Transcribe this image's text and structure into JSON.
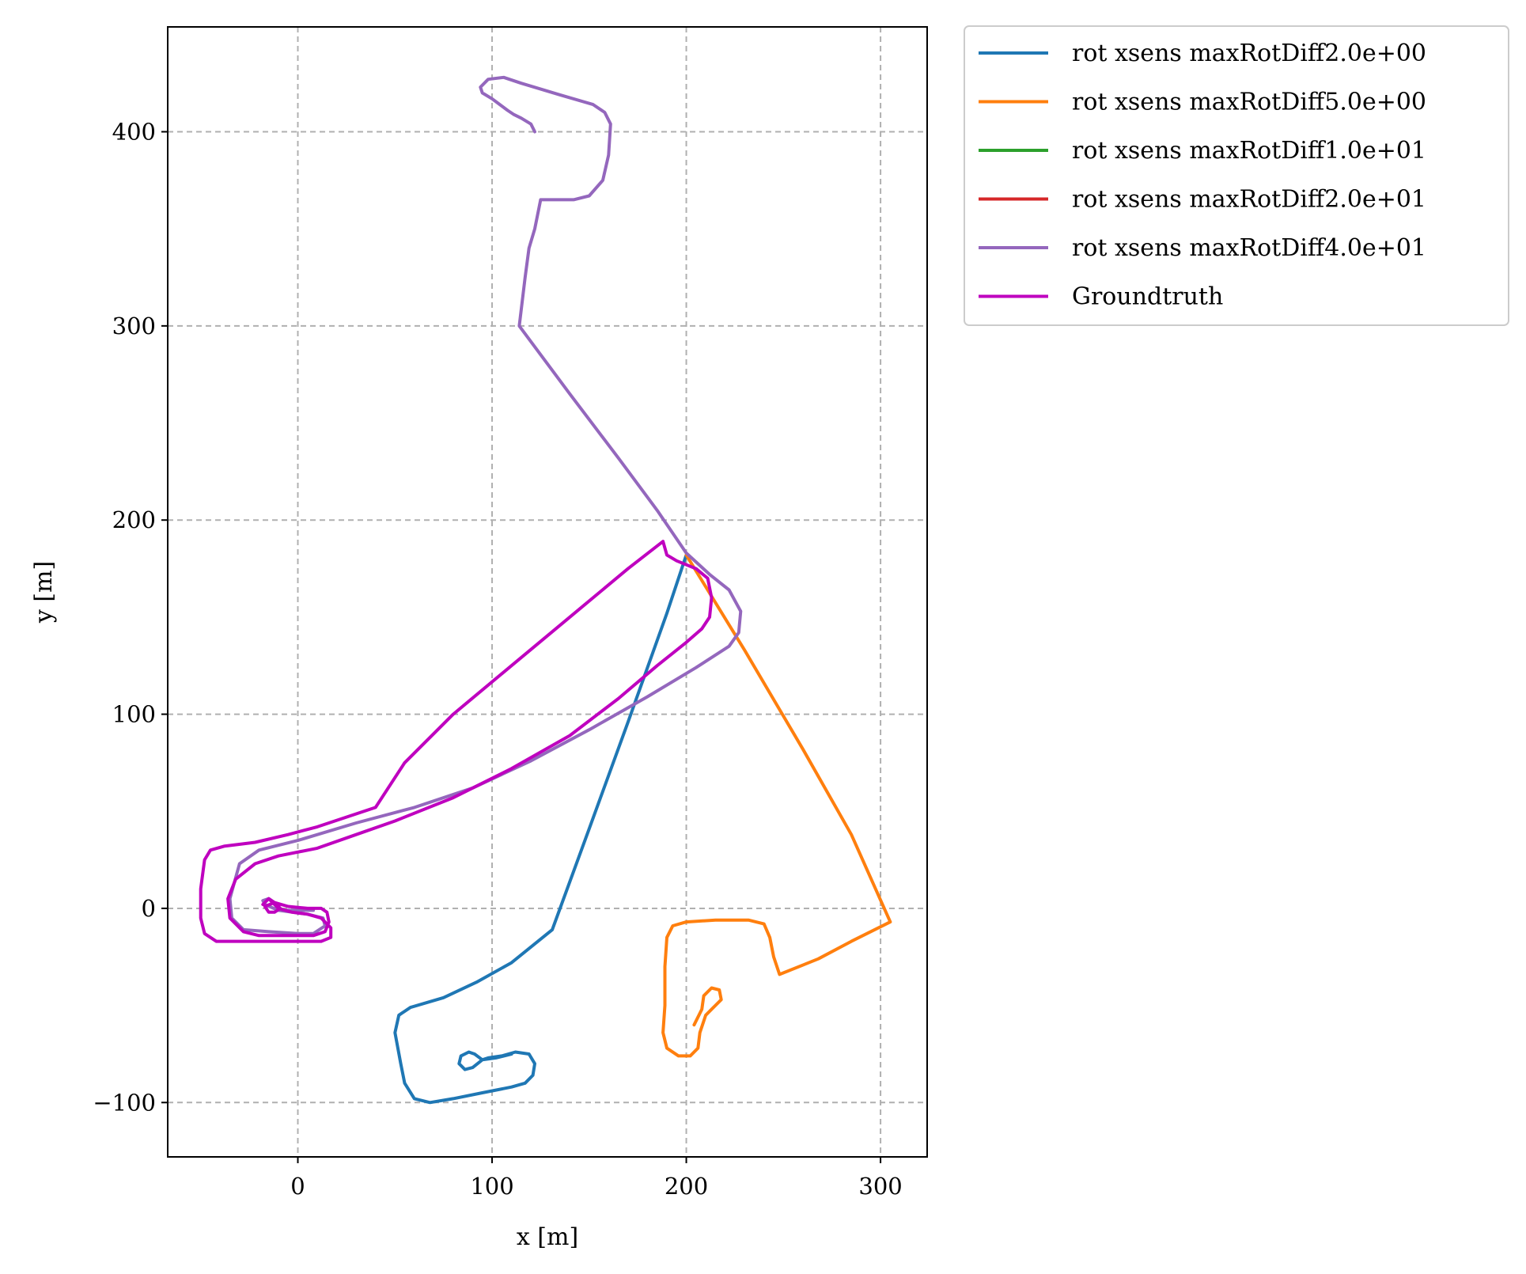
{
  "chart_data": {
    "type": "line",
    "title": "",
    "xlabel": "x [m]",
    "ylabel": "y [m]",
    "xlim": [
      -67,
      324
    ],
    "ylim": [
      -128,
      454
    ],
    "x_ticks": [
      0,
      100,
      200,
      300
    ],
    "y_ticks": [
      -100,
      0,
      100,
      200,
      300,
      400
    ],
    "x_tick_labels": [
      "0",
      "100",
      "200",
      "300"
    ],
    "y_tick_labels": [
      "−100",
      "0",
      "100",
      "200",
      "300",
      "400"
    ],
    "grid": true,
    "legend_position": "outside-top-right",
    "series": [
      {
        "name": "rot xsens maxRotDiff2.0e+00",
        "color": "#1f77b4",
        "points": [
          [
            200,
            182
          ],
          [
            190,
            152
          ],
          [
            170,
            96
          ],
          [
            150,
            41
          ],
          [
            131,
            -11
          ],
          [
            110,
            -28
          ],
          [
            92,
            -38
          ],
          [
            75,
            -46
          ],
          [
            58,
            -51
          ],
          [
            52,
            -55
          ],
          [
            50,
            -64
          ],
          [
            53,
            -80
          ],
          [
            55,
            -90
          ],
          [
            60,
            -98
          ],
          [
            68,
            -100
          ],
          [
            80,
            -98
          ],
          [
            95,
            -95
          ],
          [
            110,
            -92
          ],
          [
            117,
            -90
          ],
          [
            121,
            -86
          ],
          [
            122,
            -80
          ],
          [
            119,
            -75
          ],
          [
            112,
            -74
          ],
          [
            105,
            -76
          ],
          [
            98,
            -77
          ],
          [
            95,
            -78
          ],
          [
            90,
            -82
          ],
          [
            86,
            -83
          ],
          [
            83,
            -80
          ],
          [
            84,
            -76
          ],
          [
            88,
            -74
          ],
          [
            91,
            -75
          ],
          [
            95,
            -78
          ],
          [
            102,
            -77
          ],
          [
            110,
            -75
          ]
        ]
      },
      {
        "name": "rot xsens maxRotDiff5.0e+00",
        "color": "#ff7f0e",
        "points": [
          [
            200,
            182
          ],
          [
            230,
            133
          ],
          [
            260,
            82
          ],
          [
            285,
            38
          ],
          [
            305,
            -7
          ],
          [
            285,
            -17
          ],
          [
            268,
            -26
          ],
          [
            248,
            -34
          ],
          [
            245,
            -25
          ],
          [
            243,
            -15
          ],
          [
            240,
            -8
          ],
          [
            232,
            -6
          ],
          [
            215,
            -6
          ],
          [
            200,
            -7
          ],
          [
            193,
            -9
          ],
          [
            190,
            -15
          ],
          [
            189,
            -30
          ],
          [
            189,
            -50
          ],
          [
            188,
            -64
          ],
          [
            190,
            -72
          ],
          [
            196,
            -76
          ],
          [
            202,
            -76
          ],
          [
            206,
            -72
          ],
          [
            207,
            -64
          ],
          [
            210,
            -55
          ],
          [
            214,
            -51
          ],
          [
            218,
            -47
          ],
          [
            217,
            -42
          ],
          [
            213,
            -41
          ],
          [
            209,
            -45
          ],
          [
            208,
            -52
          ],
          [
            204,
            -60
          ]
        ]
      },
      {
        "name": "rot xsens maxRotDiff1.0e+01",
        "color": "#2ca02c",
        "points": []
      },
      {
        "name": "rot xsens maxRotDiff2.0e+01",
        "color": "#d62728",
        "points": []
      },
      {
        "name": "rot xsens maxRotDiff4.0e+01",
        "color": "#9467bd",
        "points": [
          [
            122,
            400
          ],
          [
            120,
            404
          ],
          [
            115,
            407
          ],
          [
            111,
            409
          ],
          [
            108,
            411
          ],
          [
            104,
            414
          ],
          [
            100,
            417
          ],
          [
            95,
            420
          ],
          [
            94,
            423
          ],
          [
            98,
            427
          ],
          [
            106,
            428
          ],
          [
            115,
            425
          ],
          [
            135,
            419
          ],
          [
            152,
            414
          ],
          [
            158,
            410
          ],
          [
            161,
            404
          ],
          [
            160,
            388
          ],
          [
            157,
            375
          ],
          [
            150,
            367
          ],
          [
            142,
            365
          ],
          [
            130,
            365
          ],
          [
            125,
            365
          ],
          [
            122,
            350
          ],
          [
            119,
            340
          ],
          [
            117,
            325
          ],
          [
            114,
            300
          ],
          [
            140,
            265
          ],
          [
            165,
            232
          ],
          [
            185,
            205
          ],
          [
            200,
            183
          ],
          [
            212,
            172
          ],
          [
            222,
            164
          ],
          [
            228,
            153
          ],
          [
            227,
            142
          ],
          [
            222,
            135
          ],
          [
            205,
            124
          ],
          [
            180,
            109
          ],
          [
            150,
            92
          ],
          [
            120,
            76
          ],
          [
            90,
            62
          ],
          [
            60,
            52
          ],
          [
            30,
            44
          ],
          [
            0,
            35
          ],
          [
            -20,
            30
          ],
          [
            -30,
            23
          ],
          [
            -35,
            5
          ],
          [
            -34,
            -5
          ],
          [
            -28,
            -11
          ],
          [
            -15,
            -12
          ],
          [
            0,
            -13
          ],
          [
            8,
            -13
          ],
          [
            14,
            -9
          ],
          [
            13,
            -5
          ],
          [
            5,
            -3
          ],
          [
            -10,
            -1
          ],
          [
            -17,
            2
          ],
          [
            -18,
            4
          ],
          [
            -15,
            5
          ],
          [
            -12,
            3
          ],
          [
            -10,
            0
          ],
          [
            -8,
            -1
          ],
          [
            0,
            -1
          ],
          [
            8,
            -1
          ]
        ]
      },
      {
        "name": "Groundtruth",
        "color": "#bf00bf",
        "points": [
          [
            -18,
            2
          ],
          [
            -15,
            5
          ],
          [
            -12,
            3
          ],
          [
            -9,
            0
          ],
          [
            -12,
            -2
          ],
          [
            -15,
            -2
          ],
          [
            -17,
            1
          ],
          [
            -12,
            3
          ],
          [
            -5,
            1
          ],
          [
            5,
            0
          ],
          [
            12,
            0
          ],
          [
            15,
            -2
          ],
          [
            16,
            -7
          ],
          [
            14,
            -12
          ],
          [
            8,
            -14
          ],
          [
            -5,
            -14
          ],
          [
            -20,
            -14
          ],
          [
            -28,
            -12
          ],
          [
            -35,
            -5
          ],
          [
            -36,
            5
          ],
          [
            -32,
            15
          ],
          [
            -22,
            23
          ],
          [
            -10,
            27
          ],
          [
            10,
            31
          ],
          [
            30,
            38
          ],
          [
            50,
            45
          ],
          [
            80,
            57
          ],
          [
            110,
            72
          ],
          [
            140,
            89
          ],
          [
            165,
            108
          ],
          [
            185,
            125
          ],
          [
            200,
            137
          ],
          [
            208,
            144
          ],
          [
            212,
            150
          ],
          [
            213,
            160
          ],
          [
            211,
            170
          ],
          [
            205,
            175
          ],
          [
            195,
            179
          ],
          [
            190,
            182
          ],
          [
            188,
            189
          ],
          [
            170,
            175
          ],
          [
            140,
            150
          ],
          [
            110,
            125
          ],
          [
            80,
            100
          ],
          [
            55,
            75
          ],
          [
            40,
            52
          ],
          [
            25,
            47
          ],
          [
            10,
            42
          ],
          [
            -5,
            38
          ],
          [
            -22,
            34
          ],
          [
            -38,
            32
          ],
          [
            -45,
            30
          ],
          [
            -48,
            25
          ],
          [
            -50,
            10
          ],
          [
            -50,
            -5
          ],
          [
            -48,
            -13
          ],
          [
            -42,
            -17
          ],
          [
            -25,
            -17
          ],
          [
            -5,
            -17
          ],
          [
            12,
            -17
          ],
          [
            17,
            -15
          ],
          [
            17,
            -10
          ],
          [
            12,
            -5
          ],
          [
            5,
            -3
          ],
          [
            -3,
            -2
          ],
          [
            -10,
            0
          ],
          [
            -15,
            5
          ],
          [
            -18,
            2
          ]
        ]
      }
    ]
  }
}
